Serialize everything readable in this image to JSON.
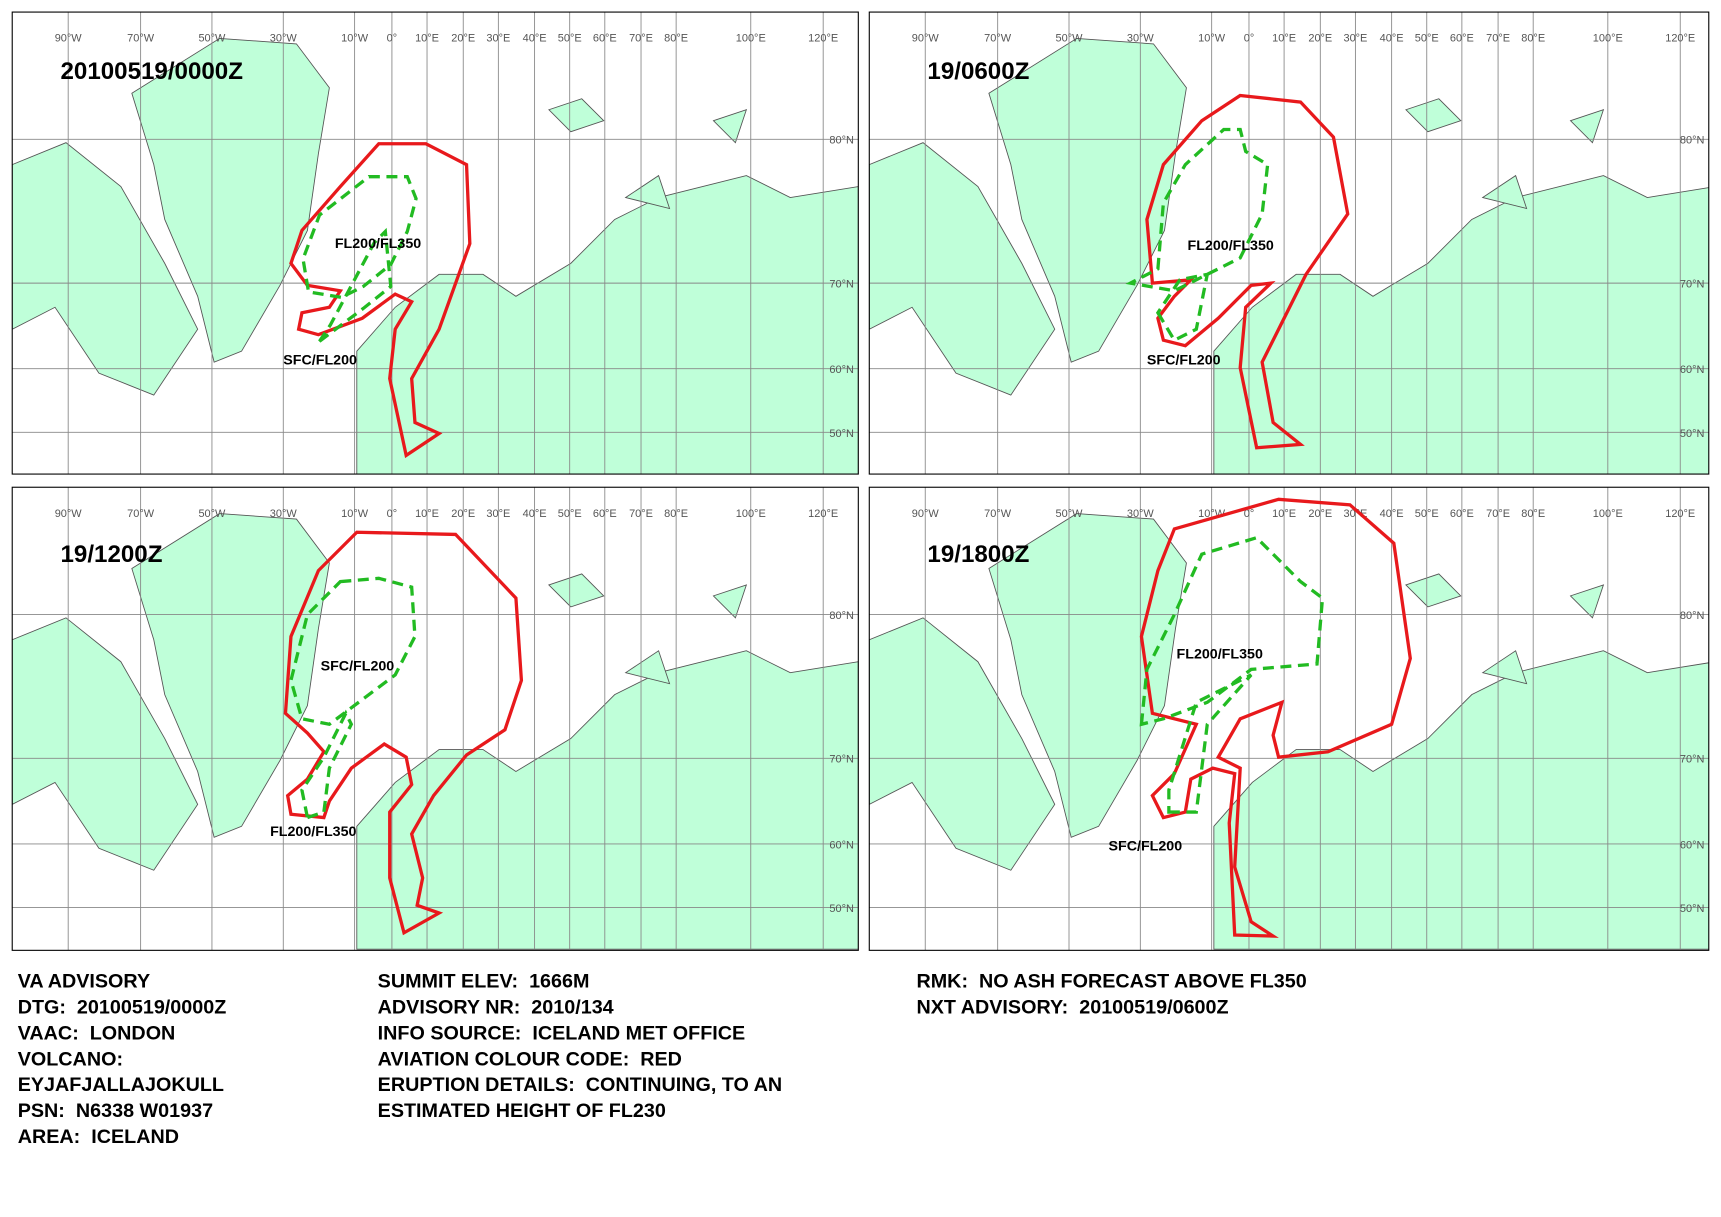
{
  "panels": [
    {
      "title": "20100519/0000Z",
      "labels": [
        "FL200/FL350",
        "SFC/FL200"
      ]
    },
    {
      "title": "19/0600Z",
      "labels": [
        "FL200/FL350",
        "SFC/FL200"
      ]
    },
    {
      "title": "19/1200Z",
      "labels": [
        "SFC/FL200",
        "FL200/FL350"
      ]
    },
    {
      "title": "19/1800Z",
      "labels": [
        "FL200/FL350",
        "SFC/FL200"
      ]
    }
  ],
  "longitude_labels": [
    "90°W",
    "70°W",
    "50°W",
    "30°W",
    "10°W",
    "0°",
    "10°E",
    "20°E",
    "30°E",
    "40°E",
    "50°E",
    "60°E",
    "70°E",
    "80°E",
    "100°E",
    "120°E"
  ],
  "latitude_labels": [
    "80°N",
    "70°N",
    "60°N",
    "50°N"
  ],
  "advisory": {
    "column_1": [
      "VA ADVISORY",
      "DTG:  20100519/0000Z",
      "VAAC:  LONDON",
      "VOLCANO:",
      "EYJAFJALLAJOKULL",
      "PSN:  N6338 W01937",
      "AREA:  ICELAND"
    ],
    "column_2": [
      "SUMMIT ELEV:  1666M",
      "ADVISORY NR:  2010/134",
      "INFO SOURCE:  ICELAND MET OFFICE",
      "AVIATION COLOUR CODE:  RED",
      "ERUPTION DETAILS:  CONTINUING, TO AN",
      "ESTIMATED HEIGHT OF FL230"
    ],
    "column_3": [
      "RMK:  NO ASH FORECAST ABOVE FL350",
      "NXT ADVISORY:  20100519/0600Z"
    ]
  }
}
